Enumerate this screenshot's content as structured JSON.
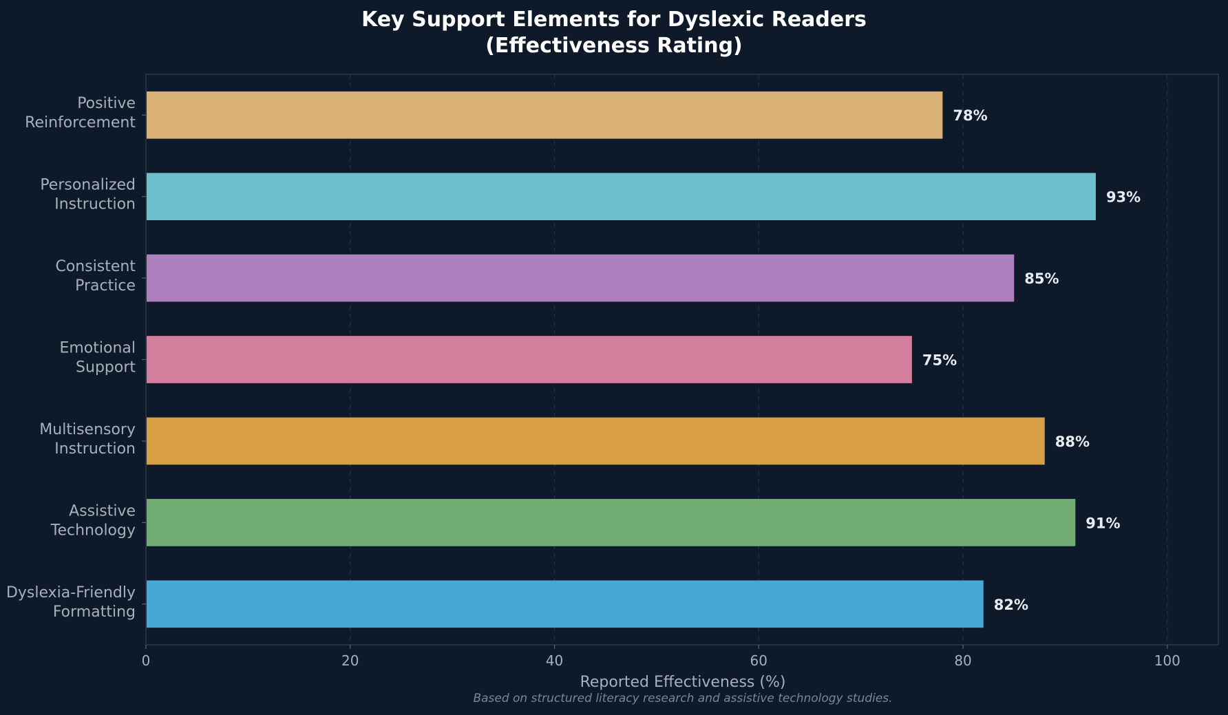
{
  "chart_data": {
    "type": "bar",
    "orientation": "horizontal",
    "title_lines": [
      "Key Support Elements for Dyslexic Readers",
      "(Effectiveness Rating)"
    ],
    "xlabel": "Reported Effectiveness (%)",
    "footnote": "Based on structured literacy research and assistive technology studies.",
    "xlim": [
      0,
      105
    ],
    "xticks": [
      0,
      20,
      40,
      60,
      80,
      100
    ],
    "grid": "vertical dashed",
    "categories": [
      [
        "Positive",
        "Reinforcement"
      ],
      [
        "Personalized",
        "Instruction"
      ],
      [
        "Consistent",
        "Practice"
      ],
      [
        "Emotional",
        "Support"
      ],
      [
        "Multisensory",
        "Instruction"
      ],
      [
        "Assistive",
        "Technology"
      ],
      [
        "Dyslexia-Friendly",
        "Formatting"
      ]
    ],
    "values": [
      78,
      93,
      85,
      75,
      88,
      91,
      82
    ],
    "value_labels": [
      "78%",
      "93%",
      "85%",
      "75%",
      "88%",
      "91%",
      "82%"
    ],
    "colors": [
      "#e6ba7b",
      "#74c9d6",
      "#b886c6",
      "#dd84a2",
      "#e3a548",
      "#78b678",
      "#49b0e0"
    ],
    "style": {
      "background": "#0e1a29",
      "plot_border": "#2a3747",
      "grid_color": "#243344"
    }
  }
}
